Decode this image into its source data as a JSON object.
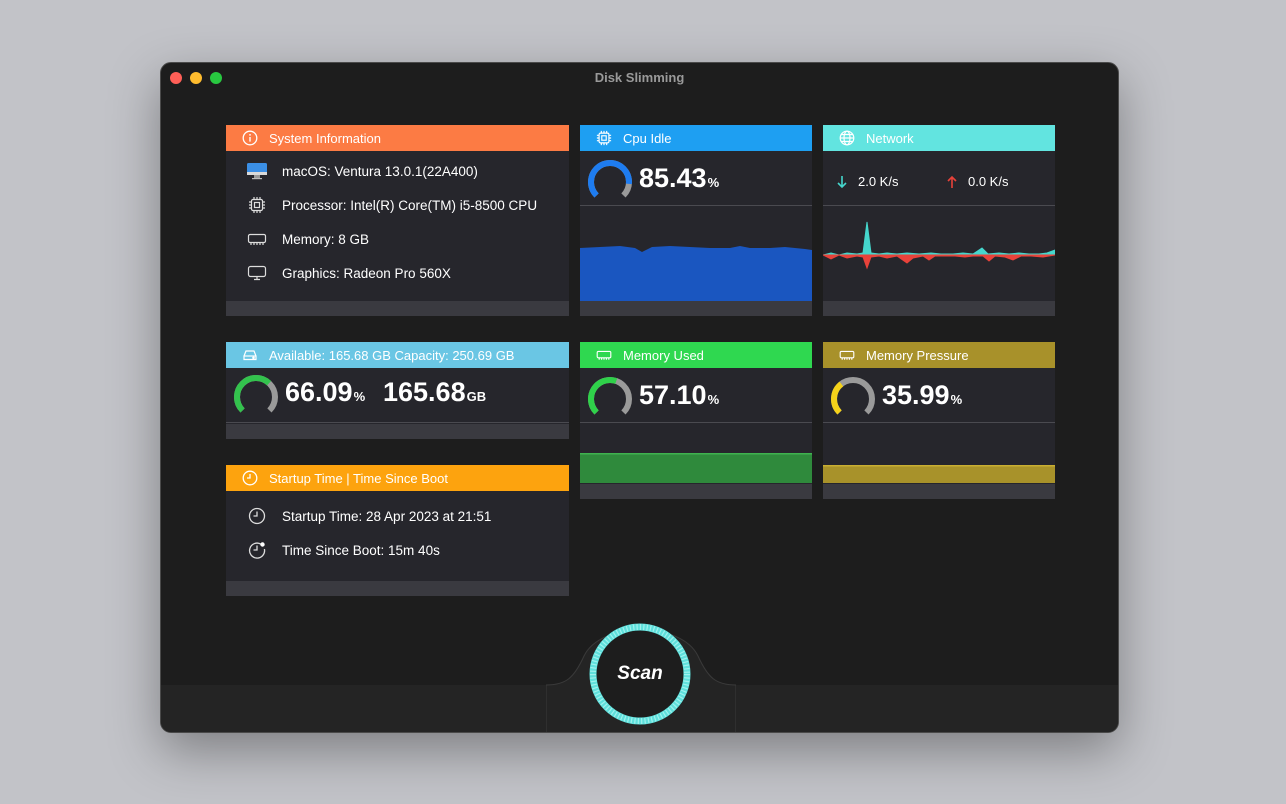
{
  "window": {
    "title": "Disk Slimming"
  },
  "system_info": {
    "header": "System Information",
    "header_color": "#fc7b44",
    "rows": [
      {
        "icon": "imac-icon",
        "text": "macOS: Ventura 13.0.1(22A400)"
      },
      {
        "icon": "processor-icon",
        "text": "Processor: Intel(R) Core(TM) i5-8500 CPU"
      },
      {
        "icon": "memory-icon",
        "text": "Memory: 8 GB"
      },
      {
        "icon": "display-icon",
        "text": "Graphics: Radeon Pro 560X"
      }
    ]
  },
  "cpu": {
    "header": "Cpu Idle",
    "header_color": "#1e9ff2",
    "value": "85.43",
    "unit": "%",
    "gauge_fraction": 0.8543,
    "accent": "#1e7cf0",
    "graph_color": "#1a56c0"
  },
  "network": {
    "header": "Network",
    "header_color": "#62e4e0",
    "download": "2.0 K/s",
    "upload": "0.0 K/s",
    "download_color": "#45d6cc",
    "upload_color": "#e8423a"
  },
  "disk": {
    "header": "Available: 165.68 GB  Capacity: 250.69 GB",
    "header_color": "#6ac6e4",
    "percent": "66.09",
    "percent_unit": "%",
    "size": "165.68",
    "size_unit": "GB",
    "gauge_fraction": 0.6609,
    "accent": "#33c24d"
  },
  "memory_used": {
    "header": "Memory Used",
    "header_color": "#2fd850",
    "value": "57.10",
    "unit": "%",
    "gauge_fraction": 0.571,
    "accent": "#2fd14a",
    "graph_color": "#2f8a3c"
  },
  "memory_pressure": {
    "header": "Memory Pressure",
    "header_color": "#a8912a",
    "value": "35.99",
    "unit": "%",
    "gauge_fraction": 0.3599,
    "accent": "#f5d21a",
    "graph_color": "#a8922a"
  },
  "startup": {
    "header": "Startup Time | Time Since Boot",
    "header_color": "#fda30e",
    "rows": [
      {
        "icon": "clock-icon",
        "text": "Startup Time: 28 Apr 2023 at 21:51"
      },
      {
        "icon": "clock-badge-icon",
        "text": "Time Since Boot: 15m 40s"
      }
    ]
  },
  "scan": {
    "label": "Scan",
    "ring_color": "#5fe0dc"
  }
}
